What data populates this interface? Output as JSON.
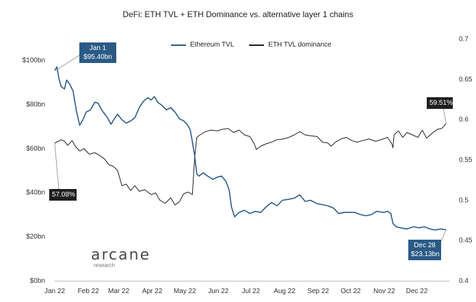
{
  "chart_data": {
    "type": "line",
    "title": "DeFi: ETH TVL + ETH Dominance vs. alternative layer 1 chains",
    "x_ticks": [
      "Jan 22",
      "Feb 22",
      "Mar 22",
      "Apr 22",
      "May 22",
      "Jun 22",
      "Jul 22",
      "Aug 22",
      "Sep 22",
      "Oct 22",
      "Nov 22",
      "Dec 22"
    ],
    "x_range": [
      "2022-01-01",
      "2022-12-31"
    ],
    "y_left": {
      "ticks": [
        "$0bn",
        "$20bn",
        "$40bn",
        "$60bn",
        "$80bn",
        "$100bn"
      ],
      "lim": [
        0,
        100
      ]
    },
    "y_right": {
      "ticks": [
        "0.4",
        "0.45",
        "0.5",
        "0.55",
        "0.6",
        "0.65",
        "0.7"
      ],
      "lim": [
        0.4,
        0.7
      ]
    },
    "grid": false,
    "legend_position": "top",
    "series": [
      {
        "name": "Ethereum TVL",
        "axis": "left",
        "color": "#2a5a85",
        "points": [
          [
            "2022-01-01",
            95.4
          ],
          [
            "2022-01-03",
            97.0
          ],
          [
            "2022-01-05",
            91.5
          ],
          [
            "2022-01-07",
            88.0
          ],
          [
            "2022-01-10",
            87.0
          ],
          [
            "2022-01-12",
            91.0
          ],
          [
            "2022-01-15",
            89.0
          ],
          [
            "2022-01-18",
            86.0
          ],
          [
            "2022-01-21",
            77.0
          ],
          [
            "2022-01-24",
            70.5
          ],
          [
            "2022-01-27",
            73.0
          ],
          [
            "2022-01-30",
            76.5
          ],
          [
            "2022-02-03",
            77.5
          ],
          [
            "2022-02-07",
            81.0
          ],
          [
            "2022-02-10",
            80.5
          ],
          [
            "2022-02-14",
            77.0
          ],
          [
            "2022-02-18",
            74.5
          ],
          [
            "2022-02-22",
            71.0
          ],
          [
            "2022-02-25",
            73.5
          ],
          [
            "2022-02-28",
            75.5
          ],
          [
            "2022-03-04",
            73.0
          ],
          [
            "2022-03-08",
            71.5
          ],
          [
            "2022-03-12",
            72.5
          ],
          [
            "2022-03-16",
            74.0
          ],
          [
            "2022-03-20",
            78.5
          ],
          [
            "2022-03-24",
            81.5
          ],
          [
            "2022-03-28",
            83.0
          ],
          [
            "2022-03-31",
            82.0
          ],
          [
            "2022-04-03",
            83.5
          ],
          [
            "2022-04-06",
            81.0
          ],
          [
            "2022-04-10",
            79.5
          ],
          [
            "2022-04-14",
            77.5
          ],
          [
            "2022-04-18",
            78.5
          ],
          [
            "2022-04-22",
            76.5
          ],
          [
            "2022-04-26",
            73.5
          ],
          [
            "2022-04-30",
            72.5
          ],
          [
            "2022-05-03",
            71.0
          ],
          [
            "2022-05-06",
            68.5
          ],
          [
            "2022-05-08",
            63.0
          ],
          [
            "2022-05-10",
            57.0
          ],
          [
            "2022-05-12",
            48.5
          ],
          [
            "2022-05-14",
            47.5
          ],
          [
            "2022-05-18",
            49.0
          ],
          [
            "2022-05-22",
            47.5
          ],
          [
            "2022-05-27",
            46.0
          ],
          [
            "2022-05-31",
            47.0
          ],
          [
            "2022-06-04",
            47.5
          ],
          [
            "2022-06-08",
            45.0
          ],
          [
            "2022-06-11",
            41.0
          ],
          [
            "2022-06-13",
            33.5
          ],
          [
            "2022-06-16",
            29.0
          ],
          [
            "2022-06-20",
            31.0
          ],
          [
            "2022-06-25",
            32.0
          ],
          [
            "2022-06-30",
            30.5
          ],
          [
            "2022-07-05",
            31.5
          ],
          [
            "2022-07-10",
            31.0
          ],
          [
            "2022-07-15",
            33.5
          ],
          [
            "2022-07-20",
            35.5
          ],
          [
            "2022-07-25",
            34.0
          ],
          [
            "2022-07-30",
            36.5
          ],
          [
            "2022-08-05",
            37.0
          ],
          [
            "2022-08-10",
            37.5
          ],
          [
            "2022-08-15",
            39.0
          ],
          [
            "2022-08-20",
            36.0
          ],
          [
            "2022-08-25",
            36.5
          ],
          [
            "2022-08-31",
            35.0
          ],
          [
            "2022-09-05",
            34.5
          ],
          [
            "2022-09-10",
            34.0
          ],
          [
            "2022-09-15",
            33.0
          ],
          [
            "2022-09-20",
            30.5
          ],
          [
            "2022-09-25",
            31.0
          ],
          [
            "2022-09-30",
            31.0
          ],
          [
            "2022-10-05",
            31.0
          ],
          [
            "2022-10-10",
            30.0
          ],
          [
            "2022-10-15",
            29.5
          ],
          [
            "2022-10-20",
            30.0
          ],
          [
            "2022-10-25",
            31.5
          ],
          [
            "2022-10-31",
            31.0
          ],
          [
            "2022-11-04",
            31.5
          ],
          [
            "2022-11-07",
            30.5
          ],
          [
            "2022-11-09",
            26.0
          ],
          [
            "2022-11-12",
            24.5
          ],
          [
            "2022-11-16",
            24.0
          ],
          [
            "2022-11-22",
            23.5
          ],
          [
            "2022-11-28",
            24.5
          ],
          [
            "2022-12-03",
            24.0
          ],
          [
            "2022-12-08",
            24.5
          ],
          [
            "2022-12-13",
            23.5
          ],
          [
            "2022-12-18",
            23.0
          ],
          [
            "2022-12-23",
            23.5
          ],
          [
            "2022-12-28",
            23.13
          ]
        ]
      },
      {
        "name": "ETH TVL dominance",
        "axis": "right",
        "color": "#1a1a1a",
        "points": [
          [
            "2022-01-01",
            0.5708
          ],
          [
            "2022-01-04",
            0.573
          ],
          [
            "2022-01-07",
            0.575
          ],
          [
            "2022-01-10",
            0.573
          ],
          [
            "2022-01-13",
            0.568
          ],
          [
            "2022-01-17",
            0.574
          ],
          [
            "2022-01-20",
            0.567
          ],
          [
            "2022-01-24",
            0.561
          ],
          [
            "2022-01-28",
            0.564
          ],
          [
            "2022-02-02",
            0.557
          ],
          [
            "2022-02-07",
            0.559
          ],
          [
            "2022-02-12",
            0.555
          ],
          [
            "2022-02-16",
            0.551
          ],
          [
            "2022-02-20",
            0.544
          ],
          [
            "2022-02-24",
            0.542
          ],
          [
            "2022-02-28",
            0.537
          ],
          [
            "2022-03-04",
            0.518
          ],
          [
            "2022-03-08",
            0.52
          ],
          [
            "2022-03-12",
            0.512
          ],
          [
            "2022-03-16",
            0.518
          ],
          [
            "2022-03-20",
            0.511
          ],
          [
            "2022-03-25",
            0.513
          ],
          [
            "2022-03-31",
            0.507
          ],
          [
            "2022-04-04",
            0.509
          ],
          [
            "2022-04-08",
            0.5
          ],
          [
            "2022-04-13",
            0.496
          ],
          [
            "2022-04-18",
            0.503
          ],
          [
            "2022-04-22",
            0.494
          ],
          [
            "2022-04-26",
            0.498
          ],
          [
            "2022-04-30",
            0.508
          ],
          [
            "2022-05-04",
            0.51
          ],
          [
            "2022-05-08",
            0.507
          ],
          [
            "2022-05-10",
            0.551
          ],
          [
            "2022-05-12",
            0.578
          ],
          [
            "2022-05-15",
            0.581
          ],
          [
            "2022-05-20",
            0.585
          ],
          [
            "2022-05-25",
            0.587
          ],
          [
            "2022-05-31",
            0.586
          ],
          [
            "2022-06-05",
            0.588
          ],
          [
            "2022-06-10",
            0.589
          ],
          [
            "2022-06-15",
            0.584
          ],
          [
            "2022-06-20",
            0.587
          ],
          [
            "2022-06-25",
            0.581
          ],
          [
            "2022-06-30",
            0.579
          ],
          [
            "2022-07-04",
            0.57
          ],
          [
            "2022-07-06",
            0.563
          ],
          [
            "2022-07-10",
            0.567
          ],
          [
            "2022-07-15",
            0.57
          ],
          [
            "2022-07-20",
            0.572
          ],
          [
            "2022-07-25",
            0.575
          ],
          [
            "2022-07-31",
            0.576
          ],
          [
            "2022-08-05",
            0.578
          ],
          [
            "2022-08-10",
            0.581
          ],
          [
            "2022-08-15",
            0.585
          ],
          [
            "2022-08-20",
            0.581
          ],
          [
            "2022-08-25",
            0.58
          ],
          [
            "2022-08-31",
            0.579
          ],
          [
            "2022-09-05",
            0.572
          ],
          [
            "2022-09-10",
            0.571
          ],
          [
            "2022-09-13",
            0.567
          ],
          [
            "2022-09-17",
            0.572
          ],
          [
            "2022-09-22",
            0.576
          ],
          [
            "2022-09-27",
            0.578
          ],
          [
            "2022-10-02",
            0.574
          ],
          [
            "2022-10-07",
            0.572
          ],
          [
            "2022-10-12",
            0.574
          ],
          [
            "2022-10-18",
            0.576
          ],
          [
            "2022-10-24",
            0.573
          ],
          [
            "2022-10-31",
            0.576
          ],
          [
            "2022-11-04",
            0.578
          ],
          [
            "2022-11-08",
            0.57
          ],
          [
            "2022-11-09",
            0.565
          ],
          [
            "2022-11-10",
            0.581
          ],
          [
            "2022-11-14",
            0.586
          ],
          [
            "2022-11-18",
            0.578
          ],
          [
            "2022-11-22",
            0.584
          ],
          [
            "2022-11-27",
            0.581
          ],
          [
            "2022-12-02",
            0.578
          ],
          [
            "2022-12-06",
            0.587
          ],
          [
            "2022-12-10",
            0.577
          ],
          [
            "2022-12-15",
            0.583
          ],
          [
            "2022-12-20",
            0.588
          ],
          [
            "2022-12-24",
            0.589
          ],
          [
            "2022-12-28",
            0.5951
          ]
        ]
      }
    ],
    "annotations": {
      "tvl_start": {
        "date": "Jan 1",
        "value": "$95.40bn"
      },
      "tvl_end": {
        "date": "Dec 28",
        "value": "$23.13bn"
      },
      "dom_start": {
        "value": "57.08%"
      },
      "dom_end": {
        "value": "59.51%"
      }
    }
  },
  "branding": {
    "logo": "arcane",
    "logo_sub": "research"
  }
}
